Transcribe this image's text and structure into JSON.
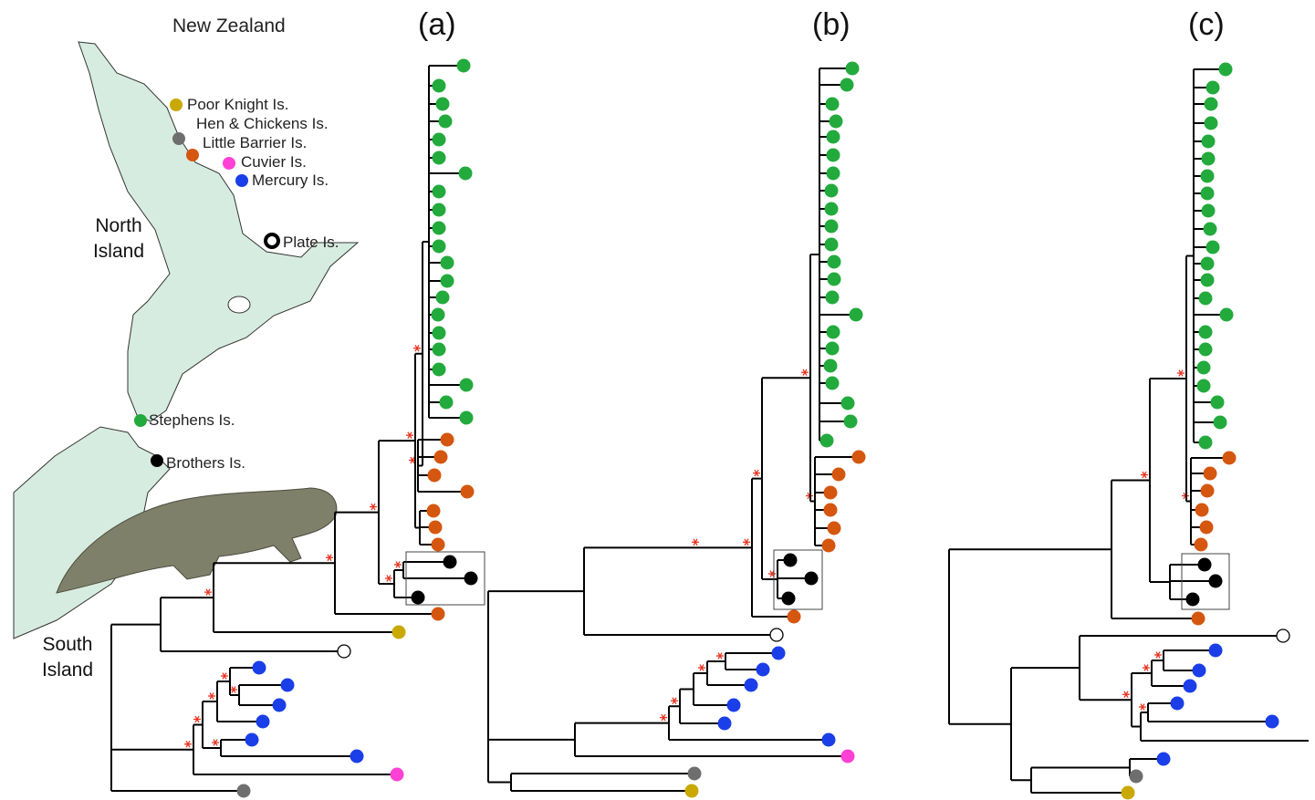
{
  "map": {
    "title": "New Zealand",
    "north_island": "North Island",
    "south_island": "South Island",
    "locations": [
      {
        "label": "Poor Knight Is."
      },
      {
        "label": "Hen & Chickens Is."
      },
      {
        "label": "Little Barrier Is."
      },
      {
        "label": "Cuvier Is."
      },
      {
        "label": "Mercury Is."
      },
      {
        "label": "Plate Is."
      },
      {
        "label": "Stephens Is."
      },
      {
        "label": "Brothers Is."
      }
    ]
  },
  "panels": [
    "(a)",
    "(b)",
    "(c)"
  ]
}
